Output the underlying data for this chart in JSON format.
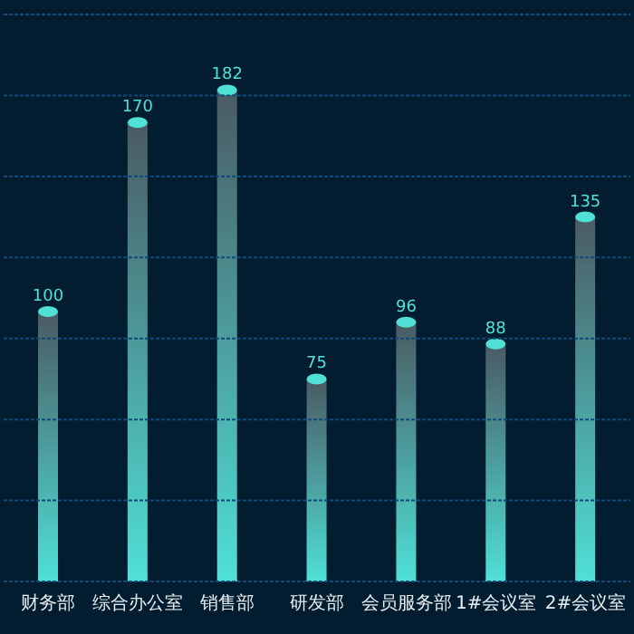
{
  "chart_data": {
    "type": "bar",
    "categories": [
      "财务部",
      "综合办公室",
      "销售部",
      "研发部",
      "会员服务部",
      "1#会议室",
      "2#会议室"
    ],
    "values": [
      100,
      170,
      182,
      75,
      96,
      88,
      135
    ],
    "color": "#4fe0d6",
    "ylim": [
      0,
      210
    ],
    "yticks": [
      {
        "value": 0,
        "label": null
      },
      {
        "value": 30,
        "label": null
      },
      {
        "value": 60,
        "label": null
      },
      {
        "value": 90,
        "label": null
      },
      {
        "value": 120,
        "label": null
      },
      {
        "value": 150,
        "label": null
      },
      {
        "value": 180,
        "label": null
      },
      {
        "value": 210,
        "label": null
      }
    ],
    "grid": "y",
    "tick_labels": "x",
    "data_labels": true,
    "legend": false
  }
}
